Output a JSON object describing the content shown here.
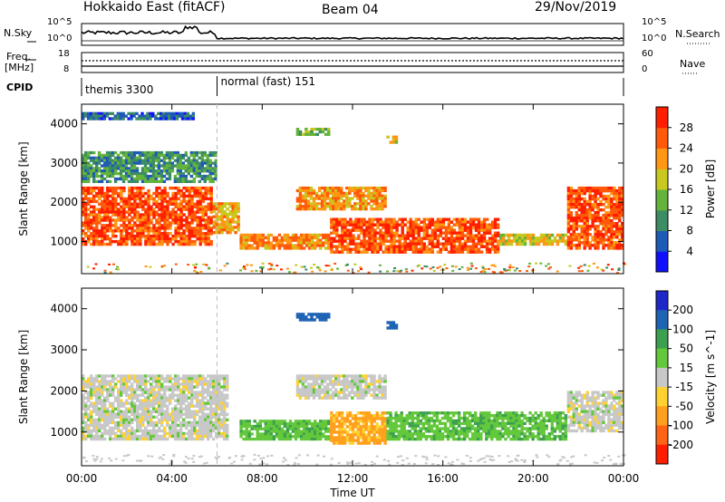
{
  "header": {
    "station": "Hokkaido East (fitACF)",
    "beam": "Beam 04",
    "date": "29/Nov/2019"
  },
  "side_labels": {
    "nsky": "N.Sky",
    "nsearch": "N.Search",
    "freq_line1": "Freq.",
    "freq_line2": "[MHz]",
    "nave": "Nave",
    "cpid": "CPID"
  },
  "top_axis_ticks": {
    "nsky": [
      "10^5",
      "10^0"
    ],
    "nsearch": [
      "10^5",
      "10^0"
    ],
    "freq": [
      "18",
      "8"
    ],
    "nave": [
      "60",
      "0"
    ]
  },
  "cpid_segments": [
    {
      "label": "themis 3300",
      "start_hour": 0,
      "end_hour": 6
    },
    {
      "label": "normal (fast) 151",
      "start_hour": 6,
      "end_hour": 24
    }
  ],
  "x_axis": {
    "label": "Time UT",
    "ticks": [
      "00:00",
      "04:00",
      "08:00",
      "12:00",
      "16:00",
      "20:00",
      "00:00"
    ]
  },
  "colors": {
    "power": [
      "#1010ff",
      "#1e5ab8",
      "#3c8c64",
      "#64b43c",
      "#c8c81e",
      "#ff9614",
      "#ff5a0a",
      "#ff1e00"
    ],
    "velocity": [
      "#ff1e00",
      "#ff6414",
      "#ffa01e",
      "#ffd232",
      "#c8c8c8",
      "#64c83c",
      "#3ca050",
      "#1e64b4",
      "#1e28c8"
    ]
  },
  "chart_data": [
    {
      "type": "heatmap",
      "title": "",
      "ylabel": "Slant Range [km]",
      "xlabel": "",
      "xlim": [
        0,
        24
      ],
      "ylim": [
        180,
        4500
      ],
      "y_ticks": [
        "1000",
        "2000",
        "3000",
        "4000"
      ],
      "colorbar": {
        "label": "Power [dB]",
        "range": [
          0,
          32
        ],
        "ticks": [
          "4",
          "8",
          "12",
          "16",
          "20",
          "24",
          "28"
        ]
      },
      "regions": [
        {
          "x": [
            0,
            5.8
          ],
          "y": [
            900,
            2400
          ],
          "value": 28
        },
        {
          "x": [
            5.8,
            7.0
          ],
          "y": [
            1200,
            2000
          ],
          "value": 22
        },
        {
          "x": [
            7.0,
            11.0
          ],
          "y": [
            800,
            1200
          ],
          "value": 24
        },
        {
          "x": [
            9.5,
            13.5
          ],
          "y": [
            1800,
            2400
          ],
          "value": 24
        },
        {
          "x": [
            11.0,
            18.5
          ],
          "y": [
            700,
            1600
          ],
          "value": 28
        },
        {
          "x": [
            18.5,
            21.5
          ],
          "y": [
            900,
            1200
          ],
          "value": 20
        },
        {
          "x": [
            21.5,
            24
          ],
          "y": [
            800,
            2400
          ],
          "value": 28
        },
        {
          "x": [
            0,
            6
          ],
          "y": [
            2500,
            3300
          ],
          "value": 12
        },
        {
          "x": [
            0,
            5
          ],
          "y": [
            4100,
            4300
          ],
          "value": 8
        },
        {
          "x": [
            9.5,
            11
          ],
          "y": [
            3700,
            3900
          ],
          "value": 16
        },
        {
          "x": [
            13.5,
            14
          ],
          "y": [
            3500,
            3700
          ],
          "value": 20
        }
      ]
    },
    {
      "type": "heatmap",
      "title": "",
      "ylabel": "Slant Range [km]",
      "xlabel": "Time UT",
      "xlim": [
        0,
        24
      ],
      "ylim": [
        180,
        4500
      ],
      "y_ticks": [
        "1000",
        "2000",
        "3000",
        "4000"
      ],
      "colorbar": {
        "label": "Velocity [m s^-1]",
        "range": [
          -250,
          250
        ],
        "ticks": [
          "200",
          "100",
          "50",
          "15",
          "-15",
          "-50",
          "-100",
          "-200"
        ]
      },
      "regions": [
        {
          "x": [
            0,
            6.5
          ],
          "y": [
            800,
            2400
          ],
          "value": 0
        },
        {
          "x": [
            7.0,
            11.0
          ],
          "y": [
            800,
            1300
          ],
          "value": 40
        },
        {
          "x": [
            11.0,
            13.5
          ],
          "y": [
            700,
            1500
          ],
          "value": -60
        },
        {
          "x": [
            13.5,
            21.5
          ],
          "y": [
            800,
            1500
          ],
          "value": 40
        },
        {
          "x": [
            9.5,
            13.5
          ],
          "y": [
            1800,
            2400
          ],
          "value": 0
        },
        {
          "x": [
            21.5,
            24
          ],
          "y": [
            1000,
            2000
          ],
          "value": 0
        },
        {
          "x": [
            9.5,
            11
          ],
          "y": [
            3700,
            3900
          ],
          "value": 150
        },
        {
          "x": [
            13.5,
            14
          ],
          "y": [
            3500,
            3700
          ],
          "value": 150
        }
      ]
    }
  ]
}
